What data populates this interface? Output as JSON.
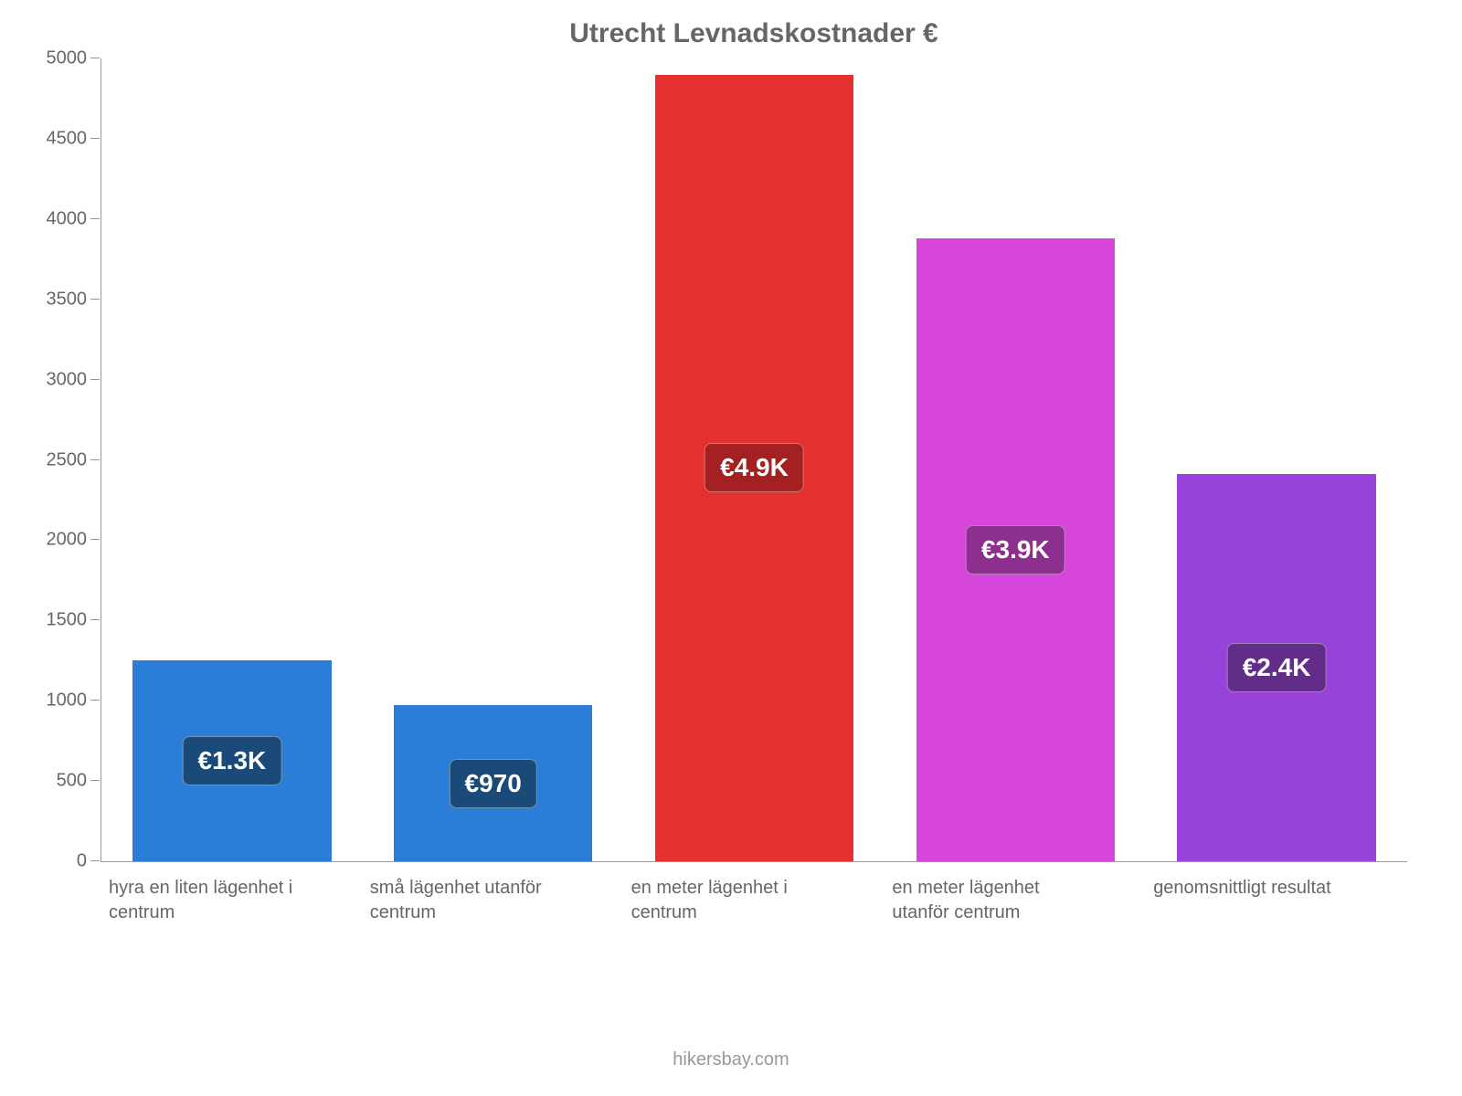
{
  "chart": {
    "type": "bar",
    "title": "Utrecht Levnadskostnader €",
    "title_fontsize": 30,
    "title_color": "#666666",
    "background_color": "#ffffff",
    "axis_color": "#999999",
    "label_color": "#666666",
    "label_fontsize": 20,
    "ylim": [
      0,
      5000
    ],
    "ytick_step": 500,
    "yticks": [
      "0",
      "500",
      "1000",
      "1500",
      "2000",
      "2500",
      "3000",
      "3500",
      "4000",
      "4500",
      "5000"
    ],
    "bar_width": 0.76,
    "value_badge_fontsize": 28,
    "categories": [
      {
        "label": "hyra en liten lägenhet i centrum",
        "value": 1250,
        "display_value": "€1.3K",
        "bar_color": "#2b7ed8",
        "badge_bg": "#1a4a78"
      },
      {
        "label": "små lägenhet utanför centrum",
        "value": 970,
        "display_value": "€970",
        "bar_color": "#2b7ed8",
        "badge_bg": "#1a4a78"
      },
      {
        "label": "en meter lägenhet i centrum",
        "value": 4900,
        "display_value": "€4.9K",
        "bar_color": "#e53030",
        "badge_bg": "#a52020"
      },
      {
        "label": "en meter lägenhet utanför centrum",
        "value": 3880,
        "display_value": "€3.9K",
        "bar_color": "#d646da",
        "badge_bg": "#8c2f8e"
      },
      {
        "label": "genomsnittligt resultat",
        "value": 2410,
        "display_value": "€2.4K",
        "bar_color": "#9742d8",
        "badge_bg": "#612d89"
      }
    ],
    "attribution": "hikersbay.com"
  }
}
